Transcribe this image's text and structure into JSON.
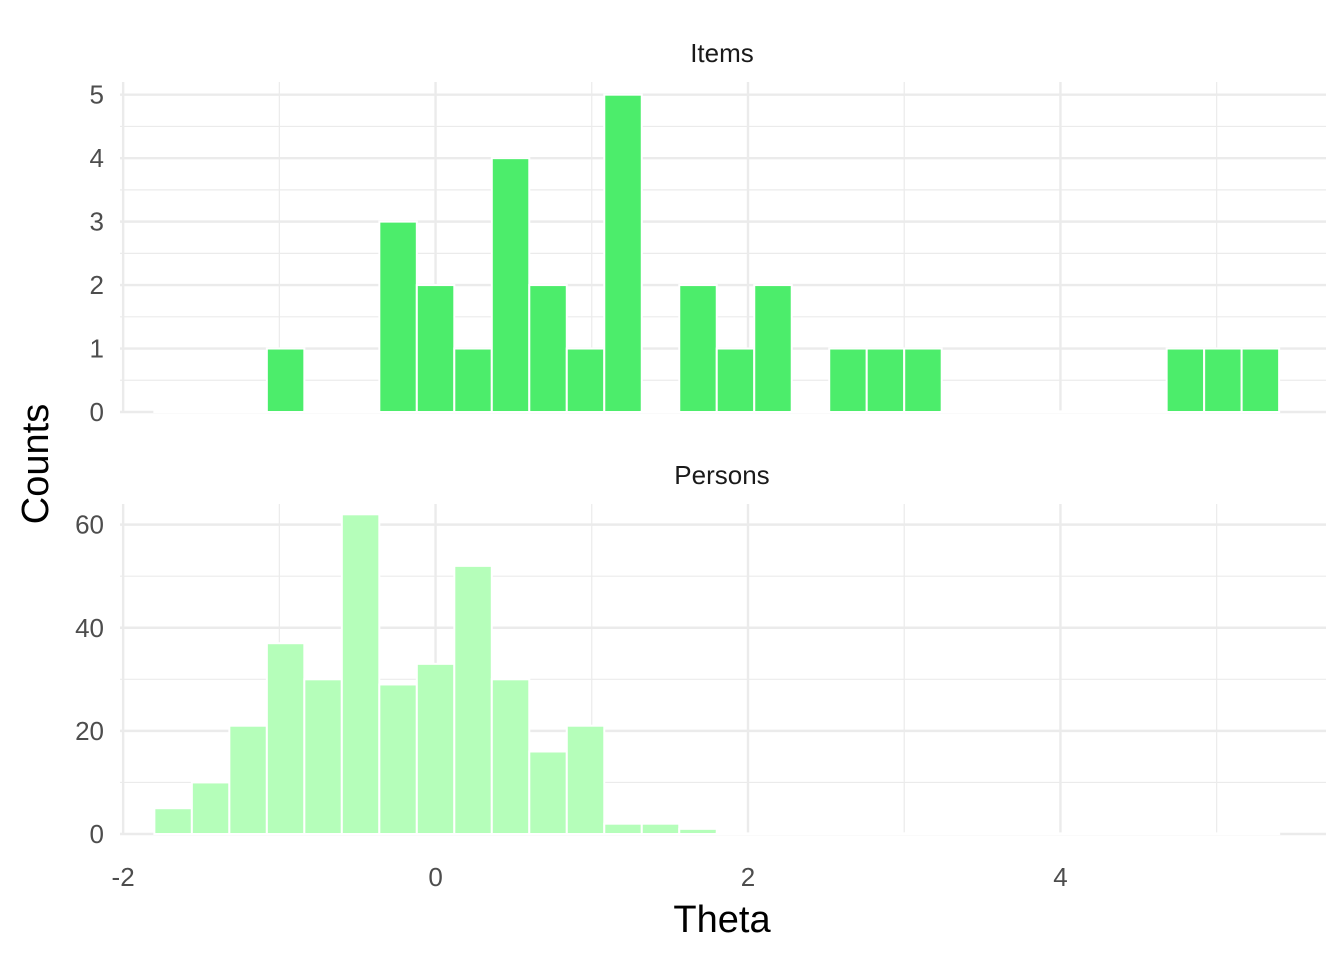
{
  "colors": {
    "items": "#4ced6b",
    "persons": "#b5feba",
    "grid": "#ebebeb",
    "bar_edge": "#ffffff"
  },
  "chart_data": {
    "type": "bar",
    "subtype": "faceted-histogram",
    "xlabel": "Theta",
    "ylabel": "Counts",
    "x_ticks": [
      -2,
      0,
      2,
      4
    ],
    "xlim": [
      -2.02,
      5.7
    ],
    "bin_width": 0.24,
    "grid": true,
    "legend": "none",
    "facets": [
      {
        "name": "Items",
        "ylim": [
          0,
          5.2
        ],
        "y_ticks": [
          0,
          1,
          2,
          3,
          4,
          5
        ],
        "bin_centers": [
          -1.68,
          -1.44,
          -1.2,
          -0.96,
          -0.72,
          -0.48,
          -0.24,
          0.0,
          0.24,
          0.48,
          0.72,
          0.96,
          1.2,
          1.44,
          1.68,
          1.92,
          2.16,
          2.4,
          2.64,
          2.88,
          3.12,
          3.36,
          3.6,
          3.84,
          4.08,
          4.32,
          4.56,
          4.8,
          5.04,
          5.28
        ],
        "values": [
          0,
          0,
          0,
          1,
          0,
          0,
          3,
          2,
          1,
          4,
          2,
          1,
          5,
          0,
          2,
          1,
          2,
          0,
          1,
          1,
          1,
          0,
          0,
          0,
          0,
          0,
          0,
          1,
          1,
          1
        ]
      },
      {
        "name": "Persons",
        "ylim": [
          0,
          64
        ],
        "y_ticks": [
          0,
          20,
          40,
          60
        ],
        "bin_centers": [
          -1.68,
          -1.44,
          -1.2,
          -0.96,
          -0.72,
          -0.48,
          -0.24,
          0.0,
          0.24,
          0.48,
          0.72,
          0.96,
          1.2,
          1.44,
          1.68,
          1.92,
          2.16,
          2.4,
          2.64,
          2.88,
          3.12,
          3.36,
          3.6,
          3.84,
          4.08,
          4.32,
          4.56,
          4.8,
          5.04,
          5.28
        ],
        "values": [
          5,
          10,
          21,
          37,
          30,
          62,
          29,
          33,
          52,
          30,
          16,
          21,
          2,
          2,
          1,
          0,
          0,
          0,
          0,
          0,
          0,
          0,
          0,
          0,
          0,
          0,
          0,
          0,
          0,
          0
        ]
      }
    ]
  }
}
